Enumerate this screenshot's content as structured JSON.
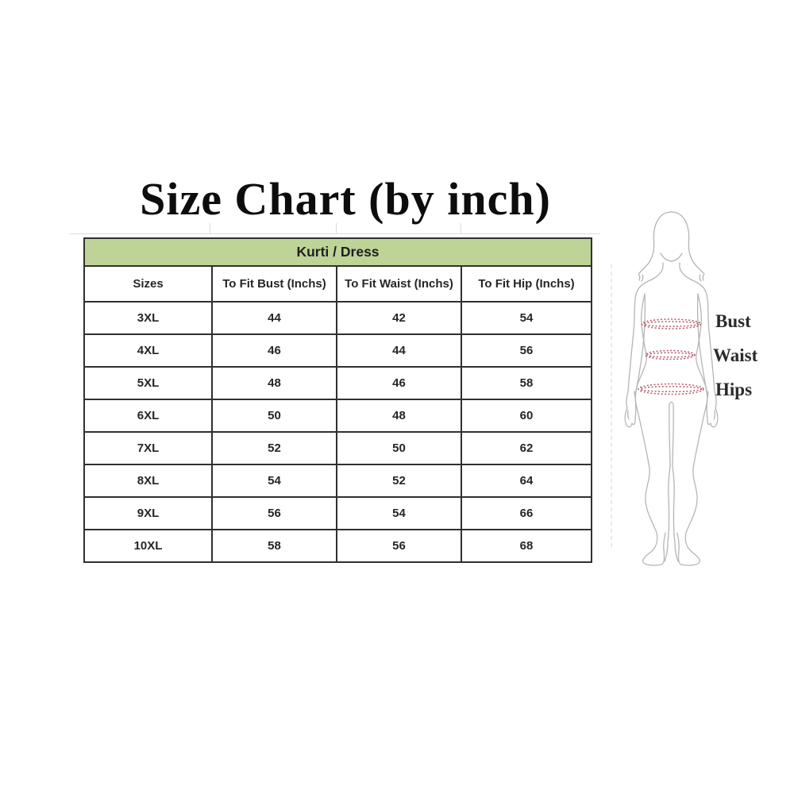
{
  "title": "Size Chart (by inch)",
  "chart_data": {
    "type": "table",
    "title": "Size Chart (by inch)",
    "group_header": "Kurti / Dress",
    "columns": [
      "Sizes",
      "To Fit Bust (Inchs)",
      "To Fit Waist (Inchs)",
      "To Fit Hip (Inchs)"
    ],
    "rows": [
      [
        "3XL",
        "44",
        "42",
        "54"
      ],
      [
        "4XL",
        "46",
        "44",
        "56"
      ],
      [
        "5XL",
        "48",
        "46",
        "58"
      ],
      [
        "6XL",
        "50",
        "48",
        "60"
      ],
      [
        "7XL",
        "52",
        "50",
        "62"
      ],
      [
        "8XL",
        "54",
        "52",
        "64"
      ],
      [
        "9XL",
        "56",
        "54",
        "66"
      ],
      [
        "10XL",
        "58",
        "56",
        "68"
      ]
    ],
    "annotations": [
      "Bust",
      "Waist",
      "Hips"
    ],
    "units": "inches",
    "layout": {
      "grid": "on",
      "header_band_position": "top"
    }
  },
  "figure": {
    "description": "female-body-outline-with-measurement-lines",
    "labels": [
      "Bust",
      "Waist",
      "Hips"
    ]
  },
  "colors": {
    "band_bg": "#bdd496",
    "table_border": "#303030",
    "text": "#262626",
    "figure_outline": "#b5b5b5",
    "measure_line": "#b4596a",
    "background": "#ffffff"
  }
}
